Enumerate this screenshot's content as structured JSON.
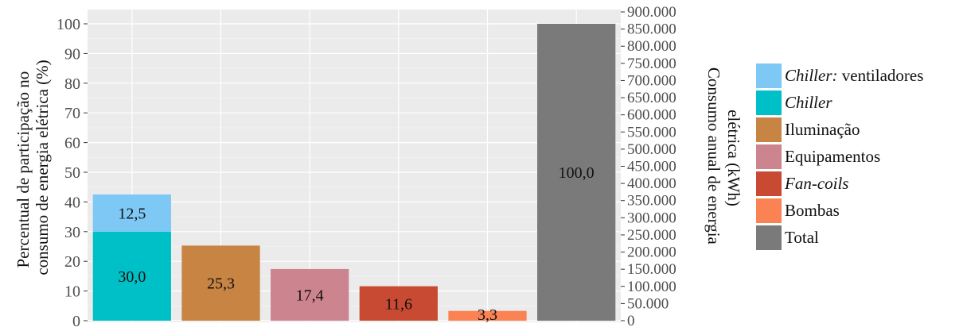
{
  "chart_data": {
    "type": "bar",
    "categories": [
      "Chiller",
      "Iluminação",
      "Equipamentos",
      "Fan-coils",
      "Bombas",
      "Total"
    ],
    "series": [
      {
        "name": "Chiller",
        "values": [
          30.0,
          null,
          null,
          null,
          null,
          null
        ],
        "color": "#00c0c7"
      },
      {
        "name": "Chiller: ventiladores",
        "values": [
          12.5,
          null,
          null,
          null,
          null,
          null
        ],
        "color": "#7ec8f5"
      },
      {
        "name": "Iluminação",
        "values": [
          null,
          25.3,
          null,
          null,
          null,
          null
        ],
        "color": "#c88443"
      },
      {
        "name": "Equipamentos",
        "values": [
          null,
          null,
          17.4,
          null,
          null,
          null
        ],
        "color": "#cc858f"
      },
      {
        "name": "Fan-coils",
        "values": [
          null,
          null,
          null,
          11.6,
          null,
          null
        ],
        "color": "#c84a33"
      },
      {
        "name": "Bombas",
        "values": [
          null,
          null,
          null,
          null,
          3.3,
          null
        ],
        "color": "#fb8253"
      },
      {
        "name": "Total",
        "values": [
          null,
          null,
          null,
          null,
          null,
          100.0
        ],
        "color": "#7a7a7a"
      }
    ],
    "stacks": [
      [
        {
          "series": "Chiller",
          "value": 30.0,
          "label": "30,0"
        },
        {
          "series": "Chiller: ventiladores",
          "value": 12.5,
          "label": "12,5"
        }
      ],
      [
        {
          "series": "Iluminação",
          "value": 25.3,
          "label": "25,3"
        }
      ],
      [
        {
          "series": "Equipamentos",
          "value": 17.4,
          "label": "17,4"
        }
      ],
      [
        {
          "series": "Fan-coils",
          "value": 11.6,
          "label": "11,6"
        }
      ],
      [
        {
          "series": "Bombas",
          "value": 3.3,
          "label": "3,3"
        }
      ],
      [
        {
          "series": "Total",
          "value": 100.0,
          "label": "100,0"
        }
      ]
    ],
    "ylabel": "Percentual de participação no consumo de energia elétrica (%)",
    "ylabel_lines": [
      "Percentual de participação no",
      "consumo de energia elétrica (%)"
    ],
    "y2label": "Consumo anual de energia elétrica (kWh)",
    "y2label_lines": [
      "Consumo anual de energia",
      "elétrica (kWh)"
    ],
    "xlabel": "",
    "ylim": [
      0,
      100
    ],
    "yticks": [
      0,
      10,
      20,
      30,
      40,
      50,
      60,
      70,
      80,
      90,
      100
    ],
    "y2lim": [
      0,
      900000
    ],
    "y2ticks": [
      0,
      50000,
      100000,
      150000,
      200000,
      250000,
      300000,
      350000,
      400000,
      450000,
      500000,
      550000,
      600000,
      650000,
      700000,
      750000,
      800000,
      850000,
      900000
    ],
    "y2tick_labels": [
      "0",
      "50.000",
      "100.000",
      "150.000",
      "200.000",
      "250.000",
      "300.000",
      "350.000",
      "400.000",
      "450.000",
      "500.000",
      "550.000",
      "600.000",
      "650.000",
      "700.000",
      "750.000",
      "800.000",
      "850.000",
      "900.000"
    ],
    "grid": true,
    "legend_position": "right",
    "legend": [
      {
        "italic": "Chiller:",
        "text": " ventiladores",
        "color": "#7ec8f5"
      },
      {
        "italic": "Chiller",
        "text": "",
        "color": "#00c0c7"
      },
      {
        "italic": "",
        "text": "Iluminação",
        "color": "#c88443"
      },
      {
        "italic": "",
        "text": "Equipamentos",
        "color": "#cc858f"
      },
      {
        "italic": "Fan-coils",
        "text": "",
        "color": "#c84a33"
      },
      {
        "italic": "",
        "text": "Bombas",
        "color": "#fb8253"
      },
      {
        "italic": "",
        "text": "Total",
        "color": "#7a7a7a"
      }
    ]
  }
}
